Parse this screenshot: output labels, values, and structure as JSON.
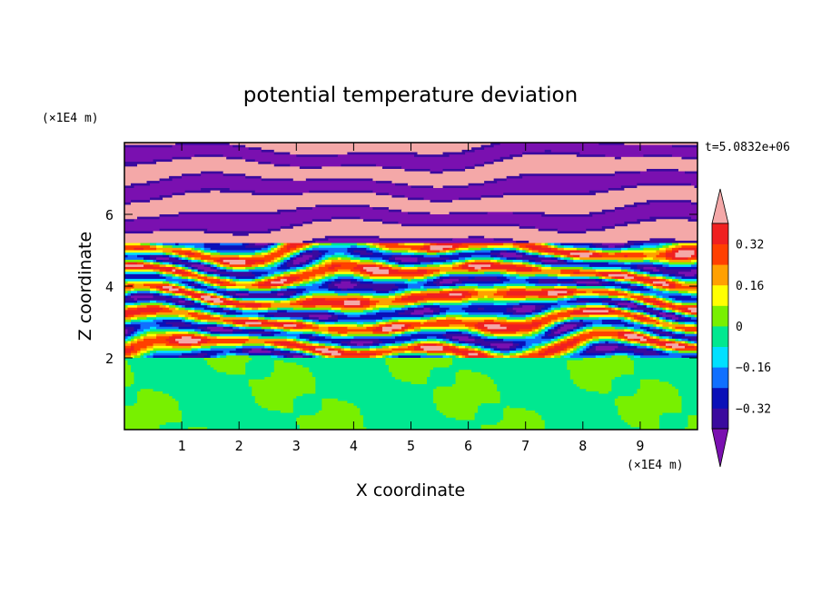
{
  "chart_data": {
    "type": "heatmap",
    "title": "potential temperature deviation",
    "xlabel": "X coordinate",
    "ylabel": "Z coordinate",
    "x_unit": "(×1E4 m)",
    "y_unit": "(×1E4 m)",
    "time_label": "t=5.0832e+06",
    "xlim": [
      0,
      10
    ],
    "ylim": [
      0,
      8
    ],
    "x_ticks": [
      1,
      2,
      3,
      4,
      5,
      6,
      7,
      8,
      9
    ],
    "y_ticks": [
      2,
      4,
      6
    ],
    "colorbar": {
      "levels": [
        -0.4,
        -0.32,
        -0.24,
        -0.16,
        -0.08,
        0,
        0.08,
        0.16,
        0.24,
        0.32,
        0.4
      ],
      "labels": [
        "0.32",
        "0.16",
        "0",
        "−0.16",
        "−0.32"
      ],
      "label_values": [
        0.32,
        0.16,
        0,
        -0.16,
        -0.32
      ],
      "colors": [
        "#7a10b0",
        "#3a0a9e",
        "#0a10b8",
        "#1070ff",
        "#00e0ff",
        "#00e890",
        "#78f000",
        "#ffff00",
        "#ffa000",
        "#ff4000",
        "#f02020",
        "#f4a8a8"
      ],
      "extend": "both"
    }
  }
}
